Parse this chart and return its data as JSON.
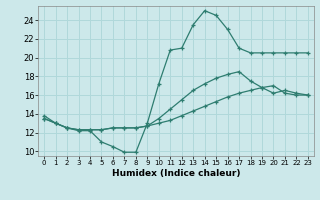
{
  "xlabel": "Humidex (Indice chaleur)",
  "x_ticks": [
    0,
    1,
    2,
    3,
    4,
    5,
    6,
    7,
    8,
    9,
    10,
    11,
    12,
    13,
    14,
    15,
    16,
    17,
    18,
    19,
    20,
    21,
    22,
    23
  ],
  "ylim": [
    9.5,
    25.5
  ],
  "xlim": [
    -0.5,
    23.5
  ],
  "y_ticks": [
    10,
    12,
    14,
    16,
    18,
    20,
    22,
    24
  ],
  "bg_color": "#cce8ea",
  "grid_color": "#b0d8da",
  "line_color": "#2e7d70",
  "line1_x": [
    0,
    1,
    2,
    3,
    4,
    5,
    6,
    7,
    8,
    9,
    10,
    11,
    12,
    13,
    14,
    15,
    16,
    17,
    18,
    19,
    20,
    21,
    22,
    23
  ],
  "line1_y": [
    13.8,
    13.0,
    12.5,
    12.2,
    12.2,
    11.0,
    10.5,
    9.9,
    9.9,
    13.0,
    17.2,
    20.8,
    21.0,
    23.5,
    25.0,
    24.5,
    23.0,
    21.0,
    20.5,
    20.5,
    20.5,
    20.5,
    20.5,
    20.5
  ],
  "line2_x": [
    0,
    1,
    2,
    3,
    4,
    5,
    6,
    7,
    8,
    9,
    10,
    11,
    12,
    13,
    14,
    15,
    16,
    17,
    18,
    19,
    20,
    21,
    22,
    23
  ],
  "line2_y": [
    13.5,
    13.0,
    12.5,
    12.3,
    12.3,
    12.3,
    12.5,
    12.5,
    12.5,
    12.7,
    13.0,
    13.3,
    13.8,
    14.3,
    14.8,
    15.3,
    15.8,
    16.2,
    16.5,
    16.8,
    17.0,
    16.2,
    16.0,
    16.0
  ],
  "line3_x": [
    0,
    1,
    2,
    3,
    4,
    5,
    6,
    7,
    8,
    9,
    10,
    11,
    12,
    13,
    14,
    15,
    16,
    17,
    18,
    19,
    20,
    21,
    22,
    23
  ],
  "line3_y": [
    13.5,
    13.0,
    12.5,
    12.3,
    12.3,
    12.3,
    12.5,
    12.5,
    12.5,
    12.7,
    13.5,
    14.5,
    15.5,
    16.5,
    17.2,
    17.8,
    18.2,
    18.5,
    17.5,
    16.8,
    16.2,
    16.5,
    16.2,
    16.0
  ]
}
